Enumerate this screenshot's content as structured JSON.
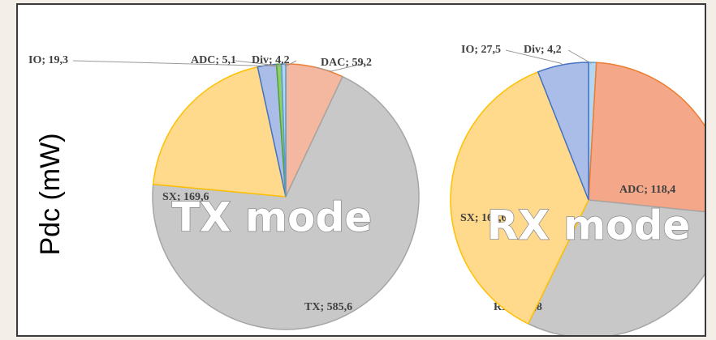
{
  "chart_data": [
    {
      "type": "pie",
      "y_label": "Pdc (mW)",
      "annotation": "TX mode",
      "values": [
        59.2,
        585.6,
        169.6,
        19.3,
        5.1,
        4.2
      ],
      "value_labels": [
        "DAC; 59,2",
        "TX; 585,6",
        "SX; 169,6",
        "IO; 19,3",
        "ADC; 5,1",
        "Div; 4,2"
      ],
      "colors": [
        "#f4b8a0",
        "#c8c8c8",
        "#ffd98c",
        "#a9bde8",
        "#8fcf6a",
        "#b4d6f0"
      ],
      "stroke_colors": [
        "#ed7d31",
        "#a5a5a5",
        "#ffc000",
        "#4472c4",
        "#55a13a",
        "#5b9bd5"
      ]
    },
    {
      "type": "pie",
      "annotation": "RX mode",
      "values": [
        4.2,
        118.4,
        140.8,
        169.6,
        27.5
      ],
      "value_labels": [
        "Div; 4,2",
        "ADC; 118,4",
        "RX; 140,8",
        "SX; 169,6",
        "IO; 27,5"
      ],
      "colors": [
        "#b4d6f0",
        "#f4a889",
        "#c8c8c8",
        "#ffd98c",
        "#a9bde8"
      ],
      "stroke_colors": [
        "#5b9bd5",
        "#ed7d31",
        "#a5a5a5",
        "#ffc000",
        "#4472c4"
      ]
    }
  ]
}
